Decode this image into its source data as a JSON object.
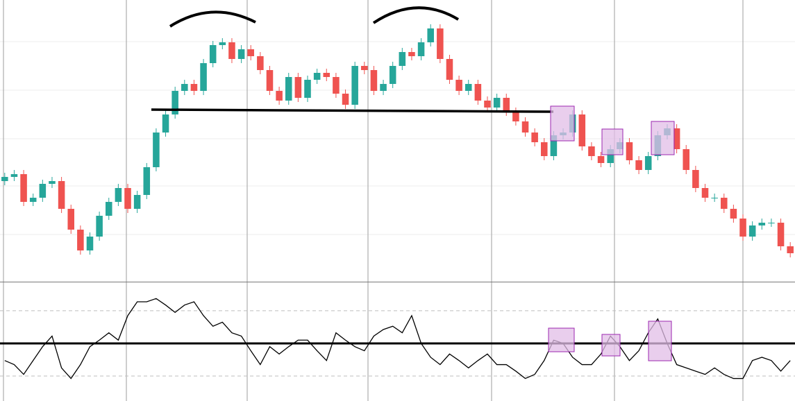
{
  "chart_data": [
    {
      "type": "candlestick",
      "up_color": "#26a69a",
      "down_color": "#ef5350",
      "ylim": [
        0,
        101.25
      ],
      "open": [
        36,
        37.5,
        38.5,
        28.5,
        30,
        35,
        36,
        26,
        18.5,
        11,
        16,
        23.5,
        28.5,
        33.5,
        26,
        31,
        41,
        53.5,
        60,
        68.5,
        71,
        68.5,
        78.5,
        85,
        86,
        80,
        83.5,
        81,
        76,
        68.5,
        65,
        73.5,
        66,
        72.5,
        75,
        73.5,
        67.5,
        63.5,
        77.5,
        76,
        68.5,
        71,
        77.5,
        82.5,
        81,
        86,
        91,
        80,
        72.5,
        68.5,
        71,
        65,
        62.5,
        66,
        61,
        57.5,
        53.5,
        50,
        45,
        52.5,
        53.5,
        60,
        48.5,
        45,
        42.5,
        47.5,
        50,
        43.5,
        40,
        45,
        52.5,
        55,
        47.5,
        40,
        33.5,
        30,
        30,
        26,
        22.5,
        16,
        20,
        21,
        21,
        12.5
      ],
      "high": [
        39,
        40,
        40,
        31.5,
        36.5,
        37.5,
        37.5,
        27.5,
        20,
        17.5,
        25,
        30,
        35,
        35,
        32.5,
        42.5,
        55,
        61.5,
        70,
        72.5,
        72.5,
        80,
        86.5,
        87.5,
        87.5,
        85,
        85,
        82.5,
        77.5,
        70,
        75,
        75,
        74,
        76.5,
        76.5,
        75,
        69,
        79,
        79,
        77.5,
        72.5,
        79,
        84,
        84,
        87.5,
        92.5,
        92.5,
        81.5,
        74,
        72.5,
        72.5,
        66.5,
        67.5,
        67.5,
        62.5,
        59,
        55,
        51.5,
        54,
        55,
        61.5,
        61.5,
        50,
        46.5,
        49,
        51.5,
        51.5,
        45,
        46.5,
        54,
        56.5,
        56.5,
        49,
        41.5,
        35,
        31.5,
        31.5,
        27.5,
        24,
        21.5,
        22.5,
        22.5,
        22.5,
        14
      ],
      "low": [
        34.5,
        36,
        27,
        27,
        28.5,
        33.5,
        24.5,
        17,
        9.5,
        9.5,
        14.5,
        22,
        27,
        24.5,
        24.5,
        29.5,
        39.5,
        52,
        58.5,
        67,
        67,
        67,
        77,
        83.5,
        78.5,
        78.5,
        79.5,
        74.5,
        67,
        63.5,
        63.5,
        64.5,
        64.5,
        71,
        72,
        66,
        62,
        62,
        74.5,
        67,
        67,
        69.5,
        76,
        79.5,
        79.5,
        84.5,
        78.5,
        71,
        67,
        67,
        63.5,
        61,
        61,
        59.5,
        56,
        52,
        48.5,
        43.5,
        43.5,
        51,
        52,
        47,
        43.5,
        41,
        41,
        46,
        42,
        38.5,
        38.5,
        43.5,
        51,
        46,
        38.5,
        32,
        28.5,
        28.5,
        24.5,
        21,
        14.5,
        14.5,
        18.5,
        19.5,
        11,
        8.5
      ],
      "close": [
        37.5,
        38.5,
        28.5,
        30,
        35,
        36,
        26,
        18.5,
        11,
        16,
        23.5,
        28.5,
        33.5,
        26,
        31,
        41,
        53.5,
        60,
        68.5,
        71,
        68.5,
        78.5,
        85,
        86,
        80,
        83.5,
        81,
        76,
        68.5,
        65,
        73.5,
        66,
        72.5,
        75,
        73.5,
        67.5,
        63.5,
        77.5,
        76,
        68.5,
        71,
        77.5,
        82.5,
        81,
        86,
        91,
        80,
        72.5,
        68.5,
        71,
        65,
        62.5,
        66,
        61,
        57.5,
        53.5,
        50,
        45,
        52.5,
        53.5,
        60,
        48.5,
        45,
        42.5,
        47.5,
        50,
        43.5,
        40,
        45,
        52.5,
        55,
        47.5,
        40,
        33.5,
        30,
        30,
        26,
        22.5,
        16,
        20,
        21,
        21,
        12.5,
        10
      ]
    },
    {
      "type": "line",
      "color": "#000000",
      "ylim": [
        14.7,
        87.4
      ],
      "yticks": [
        30,
        70
      ],
      "grid": true,
      "values": [
        39.5,
        37,
        31,
        39.5,
        48,
        54.5,
        35,
        28.5,
        37,
        48,
        52,
        56.5,
        52,
        67,
        75.5,
        75.5,
        77.5,
        73.5,
        69,
        73.5,
        75.5,
        67,
        60.5,
        63,
        56.5,
        54.5,
        45.5,
        37,
        48,
        43.5,
        48,
        52,
        52,
        45.5,
        39.5,
        56.5,
        52,
        48,
        45.5,
        54.5,
        58.5,
        60.5,
        56.5,
        67,
        50,
        41.5,
        37,
        43.5,
        39.5,
        35,
        39.5,
        43.5,
        37,
        37,
        33,
        28.5,
        31,
        39.5,
        52,
        50,
        41.5,
        37,
        37,
        43.5,
        54.5,
        48,
        39.5,
        45.5,
        56.5,
        65,
        50,
        37,
        35,
        33,
        31,
        35,
        31,
        28.5,
        28.5,
        39.5,
        41.5,
        39.5,
        33,
        39.5
      ]
    }
  ]
}
